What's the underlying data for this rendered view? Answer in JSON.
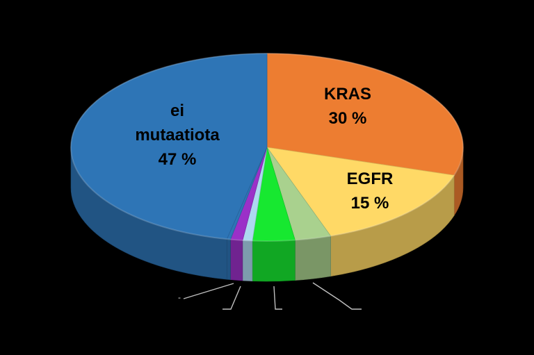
{
  "chart_data": {
    "type": "pie",
    "style": "3d-exploded-tilted",
    "title": "",
    "slices": [
      {
        "name": "KRAS",
        "label_lines": [
          "KRAS",
          "30 %"
        ],
        "value": 30,
        "color": "#ed7d31"
      },
      {
        "name": "EGFR",
        "label_lines": [
          "EGFR",
          "15 %"
        ],
        "value": 15,
        "color": "#ffd966"
      },
      {
        "name": "",
        "label_lines": [],
        "value": 3,
        "color": "#a9d18e"
      },
      {
        "name": "",
        "label_lines": [],
        "value": 3.5,
        "color": "#17e830"
      },
      {
        "name": "",
        "label_lines": [],
        "value": 0.8,
        "color": "#add8f0"
      },
      {
        "name": "",
        "label_lines": [],
        "value": 1,
        "color": "#9b30c8"
      },
      {
        "name": "",
        "label_lines": [],
        "value": 0.3,
        "color": "#2e75b6"
      },
      {
        "name": "ei mutaatiota",
        "label_lines": [
          "ei",
          "mutaatiota",
          "47 %"
        ],
        "value": 47,
        "color": "#2e75b6"
      }
    ],
    "small_labels": [
      "-"
    ],
    "legend": "none",
    "background": "#000000"
  }
}
